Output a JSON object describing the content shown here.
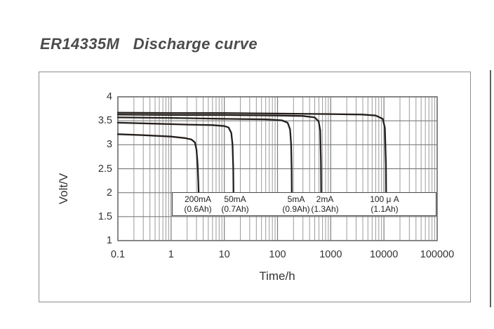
{
  "page": {
    "title": "ER14335M   Discharge curve"
  },
  "chart_data": {
    "type": "line",
    "title": "ER14335M   Discharge curve",
    "xlabel": "Time/h",
    "ylabel": "Volt/V",
    "x_scale": "log",
    "x_ticks": [
      "0.1",
      "1",
      "10",
      "100",
      "1000",
      "10000",
      "100000"
    ],
    "y_ticks": [
      "4",
      "3.5",
      "3",
      "2.5",
      "2",
      "1.5",
      "1"
    ],
    "xlim": [
      0.1,
      100000
    ],
    "ylim": [
      1,
      4
    ],
    "grid": "on, log minor verticals per decade, horizontal every 0.5V",
    "legend": {
      "position": "inside bottom, white boxed strip between 2V and 1.5V",
      "entries": [
        {
          "current": "200mA",
          "capacity": "(0.6Ah)",
          "cx": 36
        },
        {
          "current": "50mA",
          "capacity": "(0.7Ah)",
          "cx": 89
        },
        {
          "current": "5mA",
          "capacity": "(0.9Ah)",
          "cx": 176
        },
        {
          "current": "2mA",
          "capacity": "(1.3Ah)",
          "cx": 217
        },
        {
          "current": "100 μ A",
          "capacity": "(1.1Ah)",
          "cx": 302
        }
      ]
    },
    "series": [
      {
        "name": "200mA",
        "capacity_ah": 0.6,
        "end_of_life_h": 3.3,
        "points": [
          [
            0.1,
            3.22
          ],
          [
            0.3,
            3.2
          ],
          [
            1,
            3.17
          ],
          [
            1.8,
            3.14
          ],
          [
            2.4,
            3.11
          ],
          [
            2.8,
            3.05
          ],
          [
            3.0,
            2.9
          ],
          [
            3.15,
            2.6
          ],
          [
            3.25,
            2.2
          ],
          [
            3.3,
            1.95
          ]
        ]
      },
      {
        "name": "50mA",
        "capacity_ah": 0.7,
        "end_of_life_h": 14.9,
        "points": [
          [
            0.1,
            3.46
          ],
          [
            0.5,
            3.44
          ],
          [
            2,
            3.42
          ],
          [
            6,
            3.41
          ],
          [
            10,
            3.39
          ],
          [
            12,
            3.36
          ],
          [
            13.5,
            3.25
          ],
          [
            14.3,
            3.0
          ],
          [
            14.7,
            2.5
          ],
          [
            14.9,
            1.95
          ]
        ]
      },
      {
        "name": "5mA",
        "capacity_ah": 0.9,
        "end_of_life_h": 186,
        "points": [
          [
            0.1,
            3.57
          ],
          [
            1,
            3.56
          ],
          [
            10,
            3.54
          ],
          [
            60,
            3.53
          ],
          [
            120,
            3.51
          ],
          [
            155,
            3.46
          ],
          [
            172,
            3.32
          ],
          [
            180,
            3.0
          ],
          [
            184,
            2.5
          ],
          [
            186,
            1.95
          ]
        ]
      },
      {
        "name": "2mA",
        "capacity_ah": 1.3,
        "end_of_life_h": 662,
        "points": [
          [
            0.1,
            3.63
          ],
          [
            1,
            3.62
          ],
          [
            10,
            3.62
          ],
          [
            100,
            3.61
          ],
          [
            300,
            3.6
          ],
          [
            500,
            3.57
          ],
          [
            590,
            3.49
          ],
          [
            635,
            3.3
          ],
          [
            655,
            2.6
          ],
          [
            662,
            1.95
          ]
        ]
      },
      {
        "name": "100uA",
        "capacity_ah": 1.1,
        "end_of_life_h": 11000,
        "points": [
          [
            0.1,
            3.67
          ],
          [
            1,
            3.66
          ],
          [
            10,
            3.66
          ],
          [
            100,
            3.65
          ],
          [
            1000,
            3.64
          ],
          [
            4000,
            3.63
          ],
          [
            7000,
            3.61
          ],
          [
            9500,
            3.54
          ],
          [
            10400,
            3.35
          ],
          [
            10900,
            2.6
          ],
          [
            11000,
            1.95
          ]
        ]
      }
    ],
    "colors": {
      "curve": "#241f1c",
      "grid_minor": "#9b9b9b",
      "grid_major": "#7d7d7d",
      "plot_border": "#6a6a6a",
      "frame_border": "#8d8d8d",
      "title_text": "#4d4b4b",
      "tick_text": "#333333"
    }
  }
}
